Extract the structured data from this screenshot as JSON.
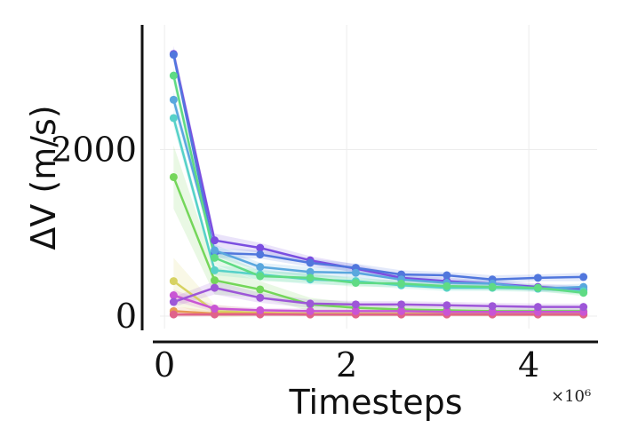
{
  "chart_data": {
    "type": "line",
    "xlabel": "Timesteps",
    "ylabel": "ΔV (m/s)",
    "x_multiplier": "×10⁶",
    "xlim": [
      -0.05,
      4.75
    ],
    "ylim": [
      -150,
      3500
    ],
    "xticks": [
      {
        "value": 0,
        "label": "0"
      },
      {
        "value": 2,
        "label": "2"
      },
      {
        "value": 4,
        "label": "4"
      }
    ],
    "yticks": [
      {
        "value": 0,
        "label": "0"
      },
      {
        "value": 2000,
        "label": "2000"
      }
    ],
    "grid": true,
    "x": [
      0.1,
      0.55,
      1.05,
      1.6,
      2.1,
      2.6,
      3.1,
      3.6,
      4.1,
      4.6
    ],
    "series": [
      {
        "color": "#7b4ee0",
        "values": [
          3150,
          910,
          820,
          670,
          570,
          460,
          420,
          390,
          350,
          320
        ],
        "band": [
          3250,
          990,
          880,
          720,
          620,
          500,
          460,
          430,
          390,
          360
        ]
      },
      {
        "color": "#5177dd",
        "values": [
          3140,
          760,
          740,
          640,
          580,
          500,
          490,
          440,
          460,
          470
        ],
        "band": [
          3220,
          820,
          790,
          690,
          630,
          550,
          530,
          490,
          500,
          520
        ]
      },
      {
        "color": "#5aa7de",
        "values": [
          2600,
          790,
          590,
          530,
          520,
          440,
          400,
          390,
          330,
          350
        ],
        "band": [
          2700,
          860,
          640,
          590,
          580,
          490,
          440,
          430,
          370,
          390
        ]
      },
      {
        "color": "#56d1c8",
        "values": [
          2380,
          550,
          500,
          440,
          420,
          370,
          340,
          340,
          330,
          300
        ],
        "band": [
          2480,
          610,
          560,
          500,
          470,
          410,
          380,
          380,
          370,
          340
        ]
      },
      {
        "color": "#5fdb84",
        "values": [
          2890,
          700,
          480,
          460,
          400,
          390,
          360,
          350,
          340,
          280
        ],
        "band": [
          2990,
          780,
          540,
          520,
          450,
          430,
          400,
          390,
          380,
          320
        ]
      },
      {
        "color": "#74d65a",
        "values": [
          1670,
          430,
          320,
          140,
          100,
          80,
          70,
          60,
          60,
          60
        ],
        "band": [
          2050,
          600,
          420,
          220,
          160,
          120,
          110,
          100,
          100,
          100
        ]
      },
      {
        "color": "#d7d262",
        "values": [
          420,
          60,
          40,
          30,
          30,
          30,
          30,
          30,
          30,
          30
        ],
        "band": [
          700,
          140,
          80,
          60,
          60,
          60,
          60,
          60,
          60,
          60
        ]
      },
      {
        "color": "#e79a55",
        "values": [
          60,
          30,
          30,
          20,
          20,
          20,
          20,
          20,
          20,
          20
        ],
        "band": [
          120,
          60,
          50,
          40,
          40,
          40,
          40,
          40,
          40,
          40
        ]
      },
      {
        "color": "#e0628a",
        "values": [
          20,
          20,
          20,
          20,
          20,
          20,
          20,
          20,
          20,
          20
        ],
        "band": [
          50,
          40,
          40,
          40,
          40,
          40,
          40,
          40,
          40,
          40
        ]
      },
      {
        "color": "#c955d4",
        "values": [
          250,
          90,
          70,
          60,
          60,
          60,
          50,
          50,
          50,
          50
        ],
        "band": [
          320,
          130,
          100,
          90,
          90,
          90,
          80,
          80,
          80,
          80
        ]
      },
      {
        "color": "#9d56d8",
        "values": [
          170,
          340,
          220,
          150,
          140,
          140,
          130,
          120,
          110,
          110
        ],
        "band": [
          230,
          420,
          280,
          200,
          180,
          180,
          170,
          160,
          150,
          150
        ]
      }
    ]
  }
}
